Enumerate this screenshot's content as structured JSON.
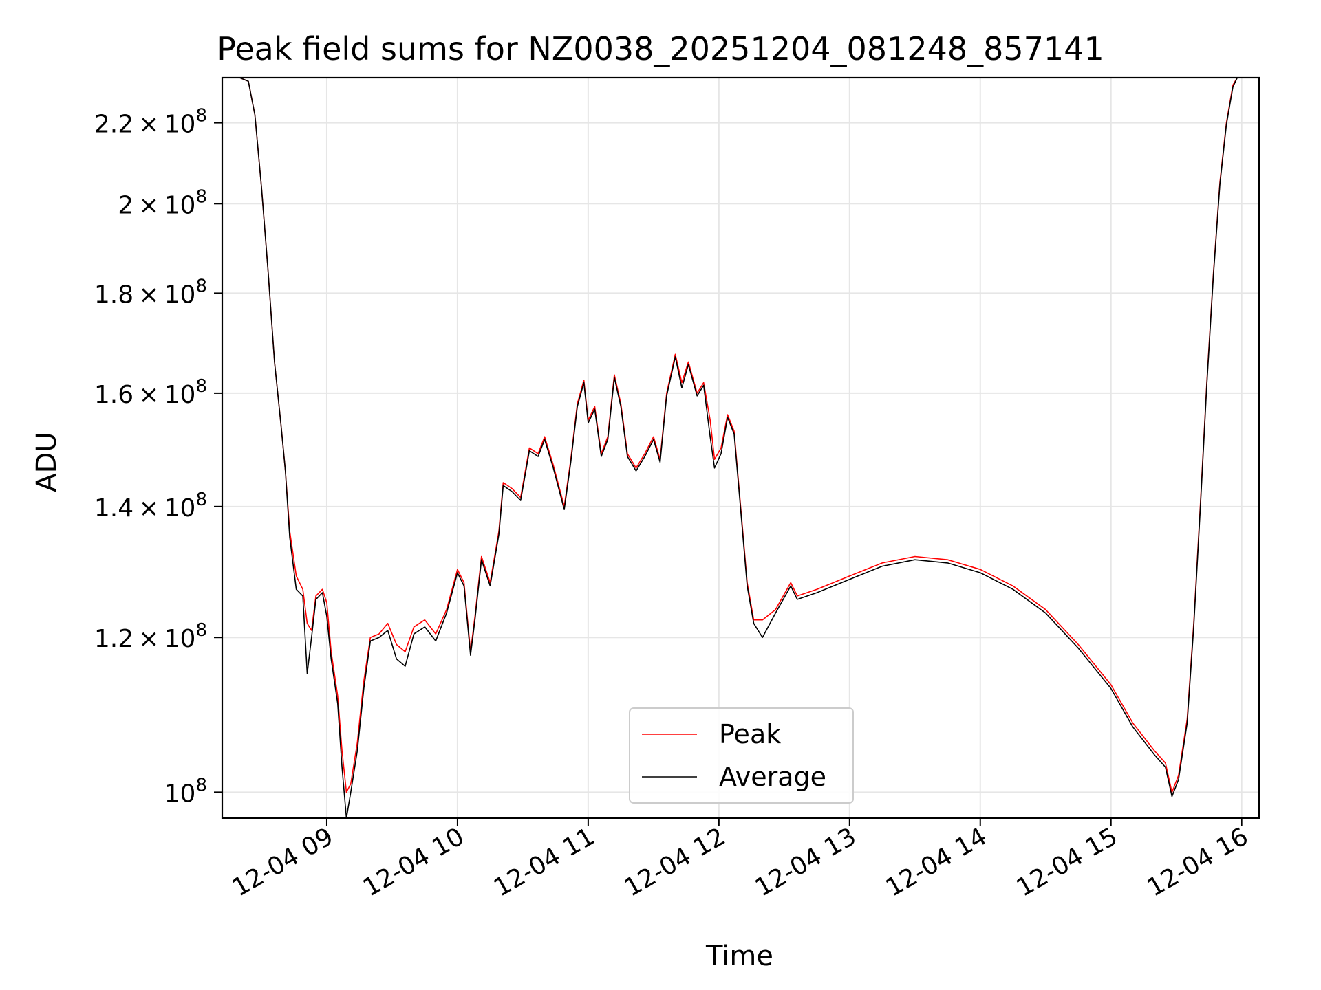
{
  "chart_data": {
    "type": "line",
    "title": "Peak field sums for NZ0038_20251204_081248_857141",
    "xlabel": "Time",
    "ylabel": "ADU",
    "yscale": "log",
    "grid": true,
    "legend_position": "lower center",
    "x_range": [
      "2025-12-04 08:12",
      "2025-12-04 16:08"
    ],
    "ylim": [
      97000000,
      232000000
    ],
    "x_ticks": [
      {
        "value": "2025-12-04 09:00",
        "label": "12-04 09"
      },
      {
        "value": "2025-12-04 10:00",
        "label": "12-04 10"
      },
      {
        "value": "2025-12-04 11:00",
        "label": "12-04 11"
      },
      {
        "value": "2025-12-04 12:00",
        "label": "12-04 12"
      },
      {
        "value": "2025-12-04 13:00",
        "label": "12-04 13"
      },
      {
        "value": "2025-12-04 14:00",
        "label": "12-04 14"
      },
      {
        "value": "2025-12-04 15:00",
        "label": "12-04 15"
      },
      {
        "value": "2025-12-04 16:00",
        "label": "12-04 16"
      }
    ],
    "y_ticks": [
      {
        "value": 100000000,
        "mantissa": "",
        "exp": "8"
      },
      {
        "value": 120000000,
        "mantissa": "1.2",
        "exp": "8"
      },
      {
        "value": 140000000,
        "mantissa": "1.4",
        "exp": "8"
      },
      {
        "value": 160000000,
        "mantissa": "1.6",
        "exp": "8"
      },
      {
        "value": 180000000,
        "mantissa": "1.8",
        "exp": "8"
      },
      {
        "value": 200000000,
        "mantissa": "2",
        "exp": "8"
      },
      {
        "value": 220000000,
        "mantissa": "2.2",
        "exp": "8"
      }
    ],
    "series": [
      {
        "name": "Peak",
        "color": "#ff0000",
        "points": [
          [
            "2025-12-04 08:12",
            232000000.0
          ],
          [
            "2025-12-04 08:20",
            232000000.0
          ],
          [
            "2025-12-04 08:24",
            231000000.0
          ],
          [
            "2025-12-04 08:27",
            222000000.0
          ],
          [
            "2025-12-04 08:30",
            204000000.0
          ],
          [
            "2025-12-04 08:33",
            185000000.0
          ],
          [
            "2025-12-04 08:36",
            166000000.0
          ],
          [
            "2025-12-04 08:39",
            154000000.0
          ],
          [
            "2025-12-04 08:41",
            146000000.0
          ],
          [
            "2025-12-04 08:43",
            136000000.0
          ],
          [
            "2025-12-04 08:46",
            129000000.0
          ],
          [
            "2025-12-04 08:49",
            127000000.0
          ],
          [
            "2025-12-04 08:51",
            122000000.0
          ],
          [
            "2025-12-04 08:53",
            121000000.0
          ],
          [
            "2025-12-04 08:55",
            126000000.0
          ],
          [
            "2025-12-04 08:58",
            127000000.0
          ],
          [
            "2025-12-04 09:00",
            125000000.0
          ],
          [
            "2025-12-04 09:02",
            118000000.0
          ],
          [
            "2025-12-04 09:05",
            112000000.0
          ],
          [
            "2025-12-04 09:07",
            105000000.0
          ],
          [
            "2025-12-04 09:09",
            100000000.0
          ],
          [
            "2025-12-04 09:11",
            101000000.0
          ],
          [
            "2025-12-04 09:14",
            106000000.0
          ],
          [
            "2025-12-04 09:17",
            114000000.0
          ],
          [
            "2025-12-04 09:20",
            120000000.0
          ],
          [
            "2025-12-04 09:24",
            120500000.0
          ],
          [
            "2025-12-04 09:28",
            122000000.0
          ],
          [
            "2025-12-04 09:32",
            119000000.0
          ],
          [
            "2025-12-04 09:36",
            118000000.0
          ],
          [
            "2025-12-04 09:40",
            121500000.0
          ],
          [
            "2025-12-04 09:45",
            122500000.0
          ],
          [
            "2025-12-04 09:50",
            120500000.0
          ],
          [
            "2025-12-04 09:55",
            124000000.0
          ],
          [
            "2025-12-04 10:00",
            130000000.0
          ],
          [
            "2025-12-04 10:03",
            128000000.0
          ],
          [
            "2025-12-04 10:06",
            118000000.0
          ],
          [
            "2025-12-04 10:08",
            123000000.0
          ],
          [
            "2025-12-04 10:11",
            132000000.0
          ],
          [
            "2025-12-04 10:15",
            128000000.0
          ],
          [
            "2025-12-04 10:19",
            136000000.0
          ],
          [
            "2025-12-04 10:21",
            144000000.0
          ],
          [
            "2025-12-04 10:25",
            143000000.0
          ],
          [
            "2025-12-04 10:29",
            141500000.0
          ],
          [
            "2025-12-04 10:33",
            150000000.0
          ],
          [
            "2025-12-04 10:37",
            149000000.0
          ],
          [
            "2025-12-04 10:40",
            152000000.0
          ],
          [
            "2025-12-04 10:44",
            147000000.0
          ],
          [
            "2025-12-04 10:49",
            140000000.0
          ],
          [
            "2025-12-04 10:52",
            148000000.0
          ],
          [
            "2025-12-04 10:55",
            158000000.0
          ],
          [
            "2025-12-04 10:58",
            162500000.0
          ],
          [
            "2025-12-04 11:00",
            155000000.0
          ],
          [
            "2025-12-04 11:03",
            157500000.0
          ],
          [
            "2025-12-04 11:06",
            149000000.0
          ],
          [
            "2025-12-04 11:09",
            152000000.0
          ],
          [
            "2025-12-04 11:12",
            163500000.0
          ],
          [
            "2025-12-04 11:15",
            158000000.0
          ],
          [
            "2025-12-04 11:18",
            149000000.0
          ],
          [
            "2025-12-04 11:22",
            146500000.0
          ],
          [
            "2025-12-04 11:26",
            149000000.0
          ],
          [
            "2025-12-04 11:30",
            152000000.0
          ],
          [
            "2025-12-04 11:33",
            148000000.0
          ],
          [
            "2025-12-04 11:36",
            160000000.0
          ],
          [
            "2025-12-04 11:40",
            167500000.0
          ],
          [
            "2025-12-04 11:43",
            162000000.0
          ],
          [
            "2025-12-04 11:46",
            166000000.0
          ],
          [
            "2025-12-04 11:50",
            160000000.0
          ],
          [
            "2025-12-04 11:53",
            162000000.0
          ],
          [
            "2025-12-04 11:56",
            155000000.0
          ],
          [
            "2025-12-04 11:58",
            148000000.0
          ],
          [
            "2025-12-04 12:01",
            150000000.0
          ],
          [
            "2025-12-04 12:04",
            156000000.0
          ],
          [
            "2025-12-04 12:07",
            153000000.0
          ],
          [
            "2025-12-04 12:10",
            140000000.0
          ],
          [
            "2025-12-04 12:13",
            128000000.0
          ],
          [
            "2025-12-04 12:16",
            122500000.0
          ],
          [
            "2025-12-04 12:20",
            122500000.0
          ],
          [
            "2025-12-04 12:26",
            124000000.0
          ],
          [
            "2025-12-04 12:33",
            128000000.0
          ],
          [
            "2025-12-04 12:36",
            126000000.0
          ],
          [
            "2025-12-04 12:45",
            127000000.0
          ],
          [
            "2025-12-04 13:00",
            129000000.0
          ],
          [
            "2025-12-04 13:15",
            131000000.0
          ],
          [
            "2025-12-04 13:30",
            132000000.0
          ],
          [
            "2025-12-04 13:45",
            131500000.0
          ],
          [
            "2025-12-04 14:00",
            130000000.0
          ],
          [
            "2025-12-04 14:15",
            127500000.0
          ],
          [
            "2025-12-04 14:30",
            124000000.0
          ],
          [
            "2025-12-04 14:45",
            119000000.0
          ],
          [
            "2025-12-04 15:00",
            113500000.0
          ],
          [
            "2025-12-04 15:10",
            108500000.0
          ],
          [
            "2025-12-04 15:20",
            105000000.0
          ],
          [
            "2025-12-04 15:25",
            103500000.0
          ],
          [
            "2025-12-04 15:28",
            100000000.0
          ],
          [
            "2025-12-04 15:31",
            102000000.0
          ],
          [
            "2025-12-04 15:35",
            109000000.0
          ],
          [
            "2025-12-04 15:38",
            122000000.0
          ],
          [
            "2025-12-04 15:41",
            140000000.0
          ],
          [
            "2025-12-04 15:44",
            162000000.0
          ],
          [
            "2025-12-04 15:47",
            184000000.0
          ],
          [
            "2025-12-04 15:50",
            205000000.0
          ],
          [
            "2025-12-04 15:53",
            220000000.0
          ],
          [
            "2025-12-04 15:56",
            230000000.0
          ],
          [
            "2025-12-04 15:58",
            232000000.0
          ],
          [
            "2025-12-04 16:08",
            232000000.0
          ]
        ]
      },
      {
        "name": "Average",
        "color": "#000000",
        "points": [
          [
            "2025-12-04 08:12",
            232000000.0
          ],
          [
            "2025-12-04 08:20",
            232000000.0
          ],
          [
            "2025-12-04 08:24",
            231000000.0
          ],
          [
            "2025-12-04 08:27",
            222000000.0
          ],
          [
            "2025-12-04 08:30",
            204000000.0
          ],
          [
            "2025-12-04 08:33",
            185000000.0
          ],
          [
            "2025-12-04 08:36",
            166000000.0
          ],
          [
            "2025-12-04 08:39",
            154000000.0
          ],
          [
            "2025-12-04 08:41",
            146000000.0
          ],
          [
            "2025-12-04 08:43",
            135000000.0
          ],
          [
            "2025-12-04 08:46",
            127000000.0
          ],
          [
            "2025-12-04 08:49",
            126000000.0
          ],
          [
            "2025-12-04 08:51",
            115000000.0
          ],
          [
            "2025-12-04 08:53",
            120000000.0
          ],
          [
            "2025-12-04 08:55",
            125500000.0
          ],
          [
            "2025-12-04 08:58",
            126500000.0
          ],
          [
            "2025-12-04 09:00",
            123000000.0
          ],
          [
            "2025-12-04 09:02",
            117000000.0
          ],
          [
            "2025-12-04 09:05",
            111000000.0
          ],
          [
            "2025-12-04 09:07",
            103000000.0
          ],
          [
            "2025-12-04 09:09",
            97000000.0
          ],
          [
            "2025-12-04 09:11",
            100000000.0
          ],
          [
            "2025-12-04 09:14",
            105000000.0
          ],
          [
            "2025-12-04 09:17",
            113000000.0
          ],
          [
            "2025-12-04 09:20",
            119500000.0
          ],
          [
            "2025-12-04 09:24",
            120000000.0
          ],
          [
            "2025-12-04 09:28",
            121000000.0
          ],
          [
            "2025-12-04 09:32",
            117000000.0
          ],
          [
            "2025-12-04 09:36",
            116000000.0
          ],
          [
            "2025-12-04 09:40",
            120500000.0
          ],
          [
            "2025-12-04 09:45",
            121500000.0
          ],
          [
            "2025-12-04 09:50",
            119500000.0
          ],
          [
            "2025-12-04 09:55",
            123500000.0
          ],
          [
            "2025-12-04 10:00",
            129500000.0
          ],
          [
            "2025-12-04 10:03",
            127500000.0
          ],
          [
            "2025-12-04 10:06",
            117500000.0
          ],
          [
            "2025-12-04 10:08",
            122500000.0
          ],
          [
            "2025-12-04 10:11",
            131500000.0
          ],
          [
            "2025-12-04 10:15",
            127500000.0
          ],
          [
            "2025-12-04 10:19",
            135500000.0
          ],
          [
            "2025-12-04 10:21",
            143500000.0
          ],
          [
            "2025-12-04 10:25",
            142500000.0
          ],
          [
            "2025-12-04 10:29",
            141000000.0
          ],
          [
            "2025-12-04 10:33",
            149500000.0
          ],
          [
            "2025-12-04 10:37",
            148500000.0
          ],
          [
            "2025-12-04 10:40",
            151500000.0
          ],
          [
            "2025-12-04 10:44",
            146500000.0
          ],
          [
            "2025-12-04 10:49",
            139500000.0
          ],
          [
            "2025-12-04 10:52",
            147500000.0
          ],
          [
            "2025-12-04 10:55",
            157500000.0
          ],
          [
            "2025-12-04 10:58",
            162000000.0
          ],
          [
            "2025-12-04 11:00",
            154500000.0
          ],
          [
            "2025-12-04 11:03",
            157000000.0
          ],
          [
            "2025-12-04 11:06",
            148500000.0
          ],
          [
            "2025-12-04 11:09",
            151500000.0
          ],
          [
            "2025-12-04 11:12",
            163000000.0
          ],
          [
            "2025-12-04 11:15",
            157500000.0
          ],
          [
            "2025-12-04 11:18",
            148500000.0
          ],
          [
            "2025-12-04 11:22",
            146000000.0
          ],
          [
            "2025-12-04 11:26",
            148500000.0
          ],
          [
            "2025-12-04 11:30",
            151500000.0
          ],
          [
            "2025-12-04 11:33",
            147500000.0
          ],
          [
            "2025-12-04 11:36",
            159500000.0
          ],
          [
            "2025-12-04 11:40",
            167000000.0
          ],
          [
            "2025-12-04 11:43",
            161000000.0
          ],
          [
            "2025-12-04 11:46",
            165500000.0
          ],
          [
            "2025-12-04 11:50",
            159500000.0
          ],
          [
            "2025-12-04 11:53",
            161500000.0
          ],
          [
            "2025-12-04 11:56",
            152000000.0
          ],
          [
            "2025-12-04 11:58",
            146500000.0
          ],
          [
            "2025-12-04 12:01",
            149000000.0
          ],
          [
            "2025-12-04 12:04",
            155500000.0
          ],
          [
            "2025-12-04 12:07",
            152500000.0
          ],
          [
            "2025-12-04 12:10",
            139500000.0
          ],
          [
            "2025-12-04 12:13",
            127500000.0
          ],
          [
            "2025-12-04 12:16",
            122000000.0
          ],
          [
            "2025-12-04 12:20",
            120000000.0
          ],
          [
            "2025-12-04 12:26",
            123500000.0
          ],
          [
            "2025-12-04 12:33",
            127500000.0
          ],
          [
            "2025-12-04 12:36",
            125500000.0
          ],
          [
            "2025-12-04 12:45",
            126500000.0
          ],
          [
            "2025-12-04 13:00",
            128500000.0
          ],
          [
            "2025-12-04 13:15",
            130500000.0
          ],
          [
            "2025-12-04 13:30",
            131500000.0
          ],
          [
            "2025-12-04 13:45",
            131000000.0
          ],
          [
            "2025-12-04 14:00",
            129500000.0
          ],
          [
            "2025-12-04 14:15",
            127000000.0
          ],
          [
            "2025-12-04 14:30",
            123500000.0
          ],
          [
            "2025-12-04 14:45",
            118500000.0
          ],
          [
            "2025-12-04 15:00",
            113000000.0
          ],
          [
            "2025-12-04 15:10",
            108000000.0
          ],
          [
            "2025-12-04 15:20",
            104500000.0
          ],
          [
            "2025-12-04 15:25",
            103000000.0
          ],
          [
            "2025-12-04 15:28",
            99500000.0
          ],
          [
            "2025-12-04 15:31",
            101500000.0
          ],
          [
            "2025-12-04 15:35",
            108500000.0
          ],
          [
            "2025-12-04 15:38",
            121500000.0
          ],
          [
            "2025-12-04 15:41",
            139500000.0
          ],
          [
            "2025-12-04 15:44",
            161500000.0
          ],
          [
            "2025-12-04 15:47",
            183500000.0
          ],
          [
            "2025-12-04 15:50",
            204500000.0
          ],
          [
            "2025-12-04 15:53",
            219500000.0
          ],
          [
            "2025-12-04 15:56",
            229500000.0
          ],
          [
            "2025-12-04 15:58",
            232000000.0
          ],
          [
            "2025-12-04 16:08",
            232000000.0
          ]
        ]
      }
    ]
  }
}
